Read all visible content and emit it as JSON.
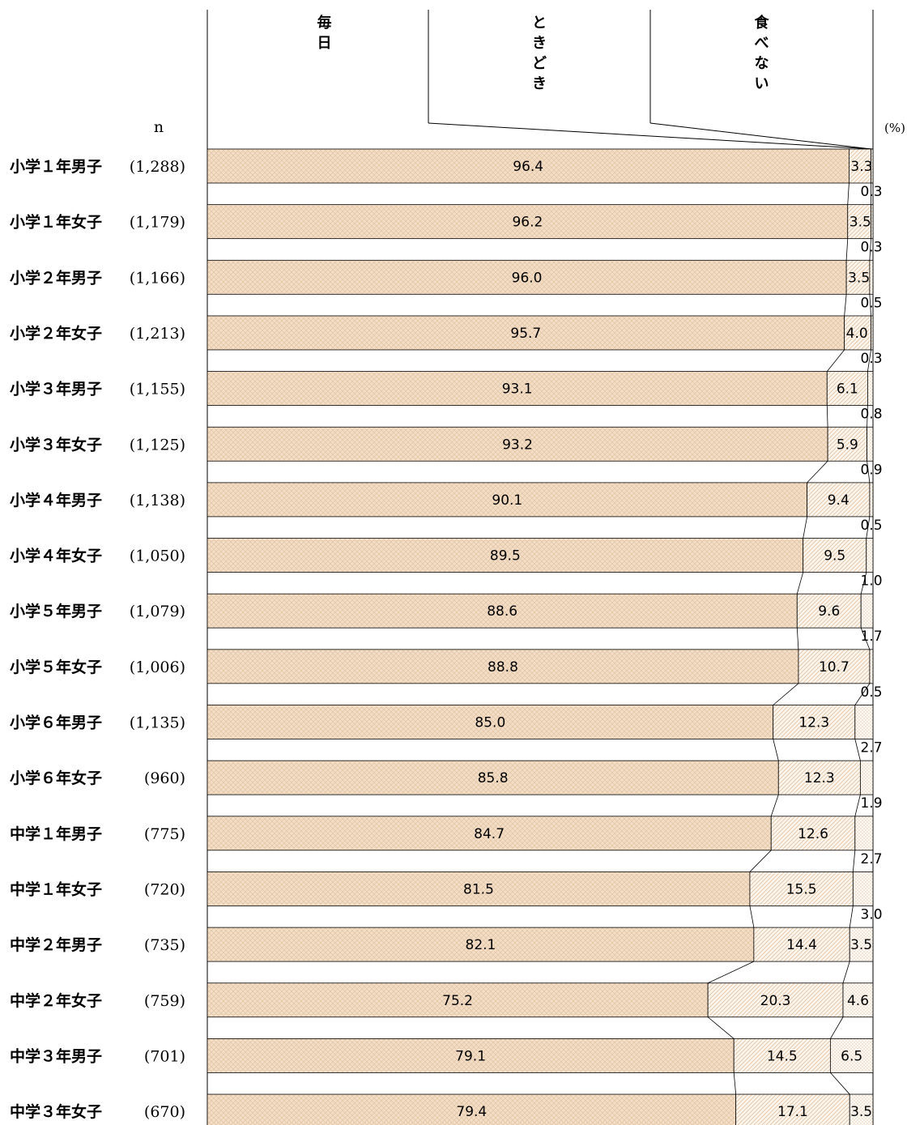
{
  "chart_data": {
    "type": "bar",
    "stacked": true,
    "orientation": "horizontal",
    "normalized_to": 100,
    "unit": "(%)",
    "n_header": "n",
    "series": [
      {
        "name": "毎日",
        "color": "#f3ddc6",
        "pattern": "crosshatch",
        "values": [
          96.4,
          96.2,
          96.0,
          95.7,
          93.1,
          93.2,
          90.1,
          89.5,
          88.6,
          88.8,
          85.0,
          85.8,
          84.7,
          81.5,
          82.1,
          75.2,
          79.1,
          79.4
        ]
      },
      {
        "name": "ときどき",
        "color": "#fbf2ea",
        "pattern": "diagonal",
        "values": [
          3.3,
          3.5,
          3.5,
          4.0,
          6.1,
          5.9,
          9.4,
          9.5,
          9.6,
          10.7,
          12.3,
          12.3,
          12.6,
          15.5,
          14.4,
          20.3,
          14.5,
          17.1
        ]
      },
      {
        "name": "食べない",
        "color": "#fdf8f2",
        "pattern": "dots",
        "values": [
          0.3,
          0.3,
          0.5,
          0.3,
          0.8,
          0.9,
          0.5,
          1.0,
          1.7,
          0.5,
          2.7,
          1.9,
          2.7,
          3.0,
          3.5,
          4.6,
          6.5,
          3.5
        ]
      }
    ],
    "categories": [
      {
        "label": "小学１年男子",
        "n": "(1,288)"
      },
      {
        "label": "小学１年女子",
        "n": "(1,179)"
      },
      {
        "label": "小学２年男子",
        "n": "(1,166)"
      },
      {
        "label": "小学２年女子",
        "n": "(1,213)"
      },
      {
        "label": "小学３年男子",
        "n": "(1,155)"
      },
      {
        "label": "小学３年女子",
        "n": "(1,125)"
      },
      {
        "label": "小学４年男子",
        "n": "(1,138)"
      },
      {
        "label": "小学４年女子",
        "n": "(1,050)"
      },
      {
        "label": "小学５年男子",
        "n": "(1,079)"
      },
      {
        "label": "小学５年女子",
        "n": "(1,006)"
      },
      {
        "label": "小学６年男子",
        "n": "(1,135)"
      },
      {
        "label": "小学６年女子",
        "n": "(960)"
      },
      {
        "label": "中学１年男子",
        "n": "(775)"
      },
      {
        "label": "中学１年女子",
        "n": "(720)"
      },
      {
        "label": "中学２年男子",
        "n": "(735)"
      },
      {
        "label": "中学２年女子",
        "n": "(759)"
      },
      {
        "label": "中学３年男子",
        "n": "(701)"
      },
      {
        "label": "中学３年女子",
        "n": "(670)"
      }
    ],
    "xlim": [
      0,
      100
    ],
    "grid": false,
    "legend_placement": "top, as vertical column headers"
  }
}
